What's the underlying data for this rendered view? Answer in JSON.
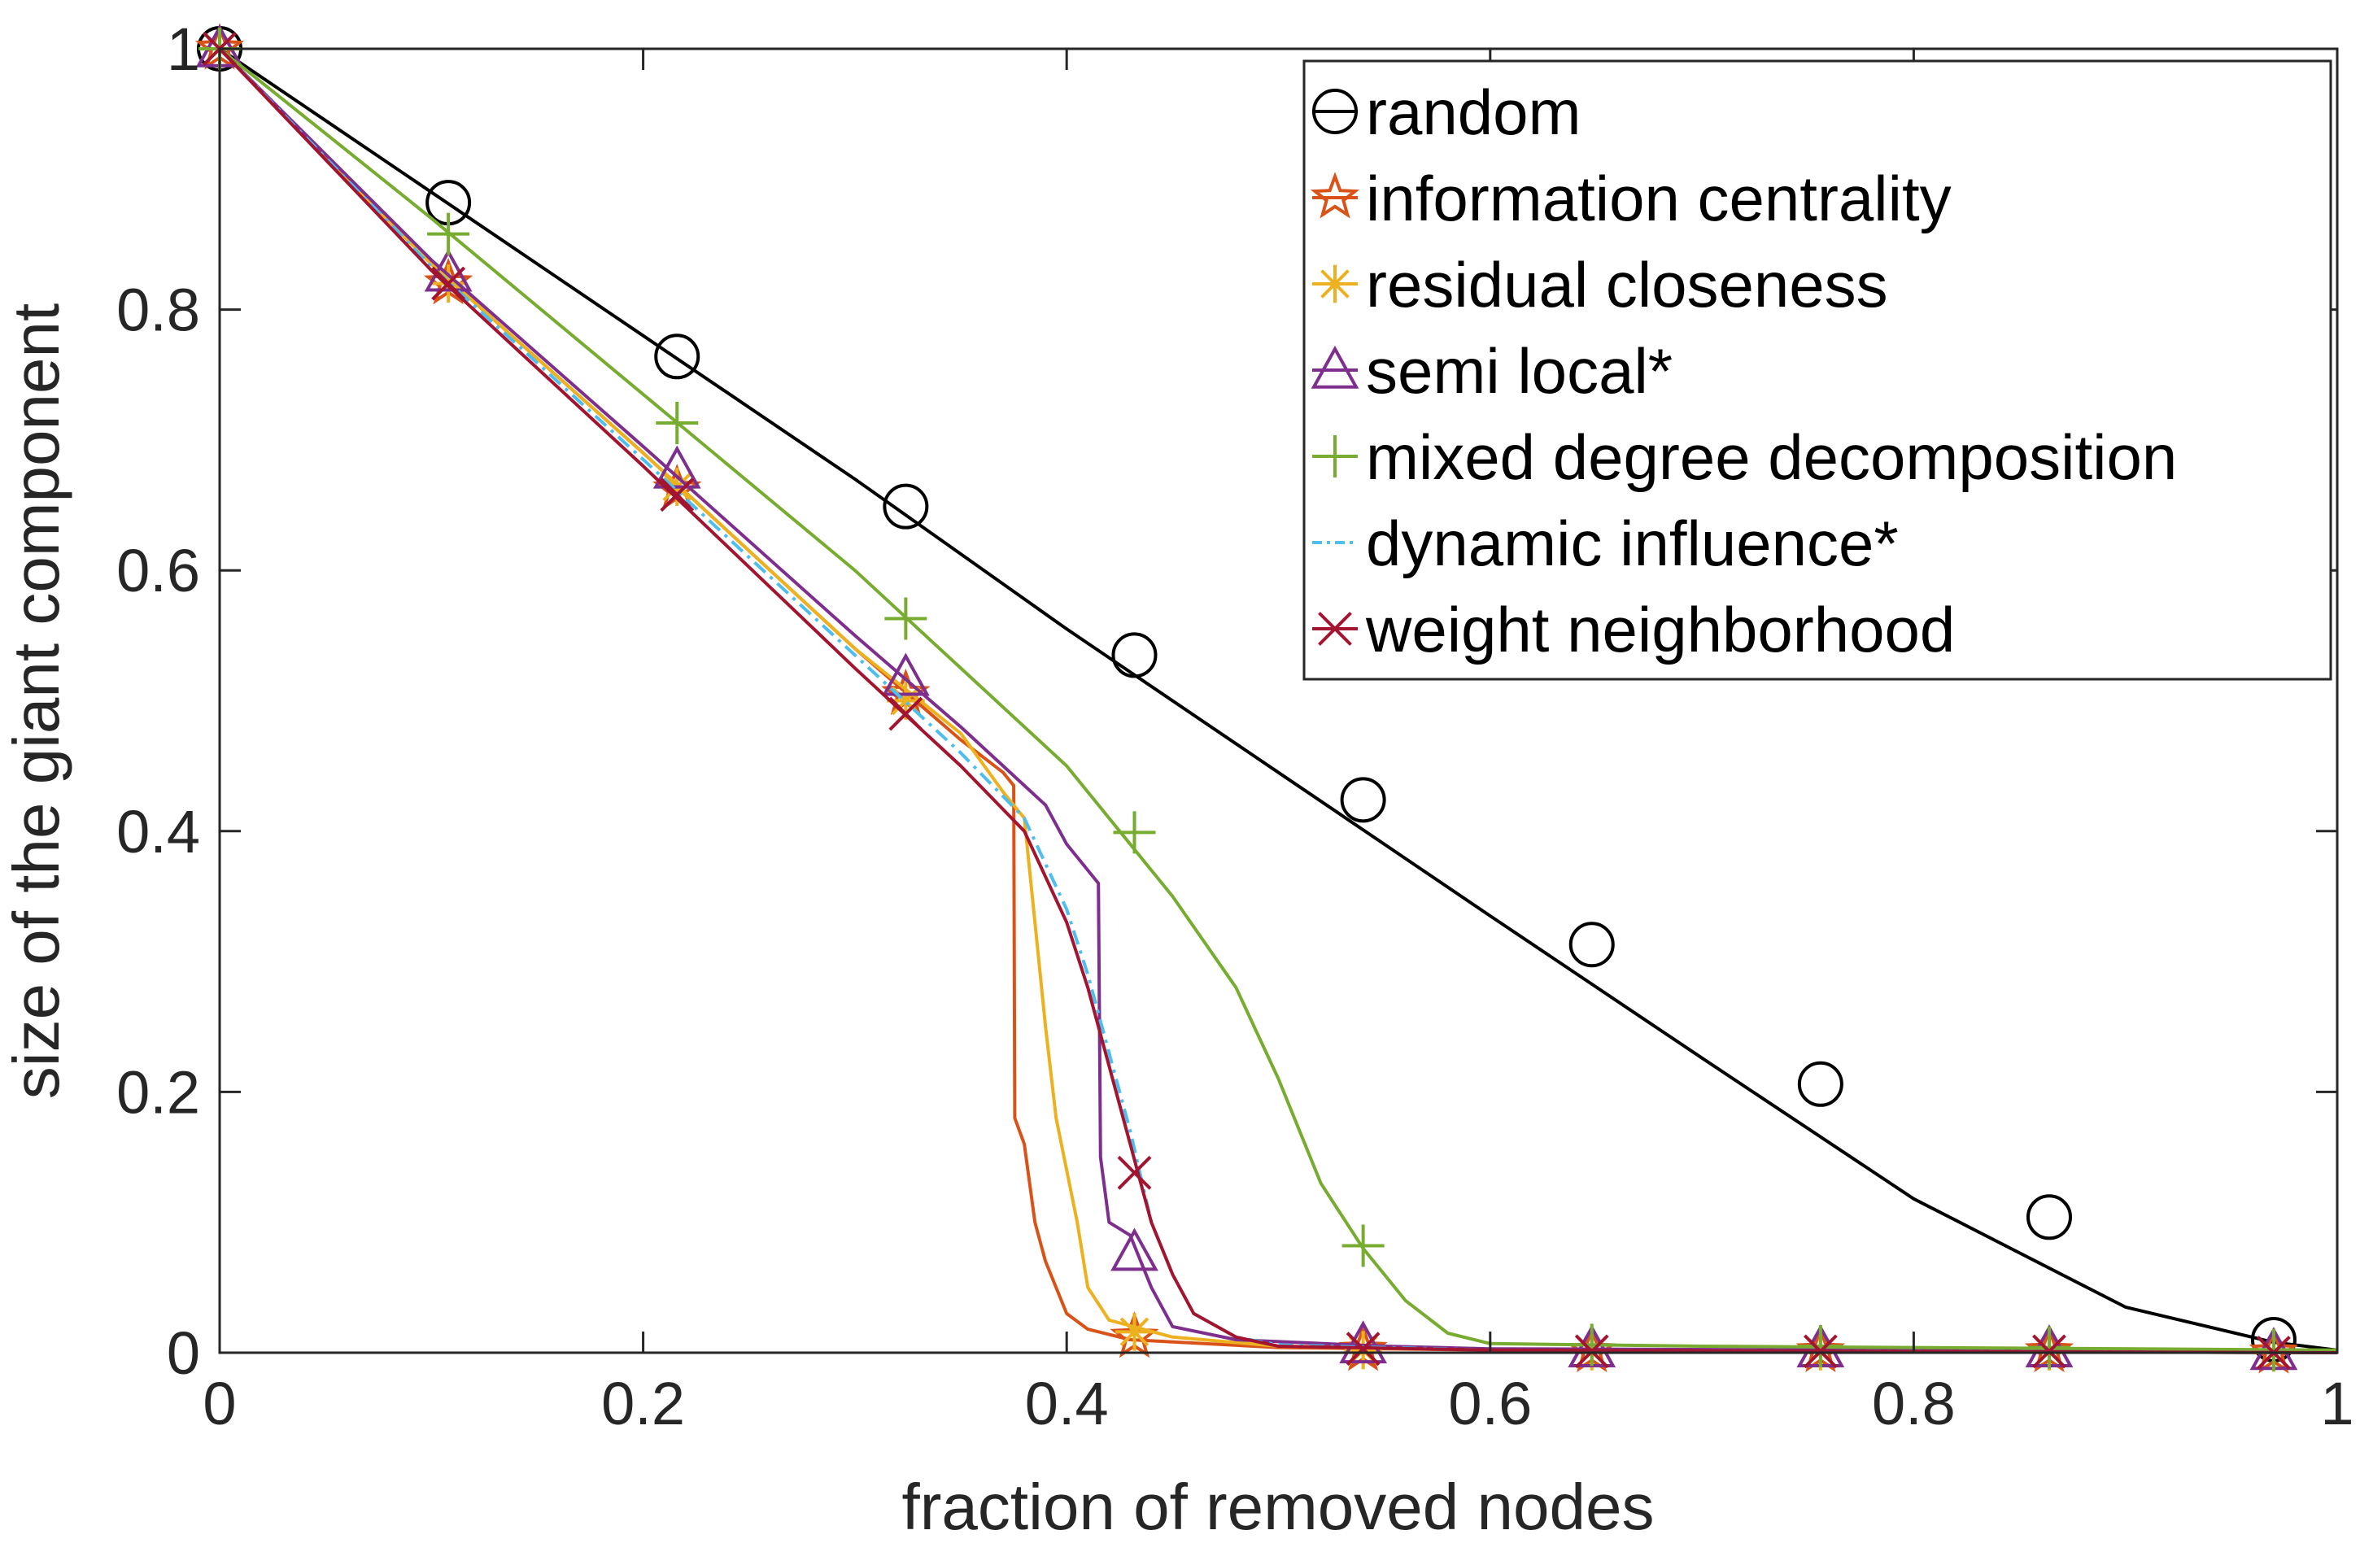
{
  "chart_data": {
    "type": "line",
    "title": "",
    "xlabel": "fraction of removed nodes",
    "ylabel": "size of the giant component",
    "xlim": [
      0,
      1
    ],
    "ylim": [
      0,
      1
    ],
    "x_ticks": [
      "0",
      "0.2",
      "0.4",
      "0.6",
      "0.8",
      "1"
    ],
    "y_ticks": [
      "0",
      "0.2",
      "0.4",
      "0.6",
      "0.8",
      "1"
    ],
    "grid": false,
    "legend_position": "top-right",
    "series": [
      {
        "name": "random",
        "color": "#000000",
        "marker": "circle",
        "dashed": false,
        "points": [
          [
            0,
            1
          ],
          [
            0.1,
            0.89
          ],
          [
            0.2,
            0.78
          ],
          [
            0.3,
            0.67
          ],
          [
            0.4,
            0.555
          ],
          [
            0.5,
            0.445
          ],
          [
            0.6,
            0.335
          ],
          [
            0.7,
            0.226
          ],
          [
            0.8,
            0.118
          ],
          [
            0.9,
            0.035
          ],
          [
            0.97,
            0.008
          ],
          [
            1,
            0.002
          ]
        ],
        "marker_points": [
          [
            0,
            1
          ],
          [
            0.108,
            0.882
          ],
          [
            0.216,
            0.764
          ],
          [
            0.324,
            0.649
          ],
          [
            0.432,
            0.535
          ],
          [
            0.54,
            0.424
          ],
          [
            0.648,
            0.313
          ],
          [
            0.756,
            0.206
          ],
          [
            0.864,
            0.104
          ],
          [
            0.97,
            0.01
          ]
        ]
      },
      {
        "name": "information centrality",
        "color": "#D95319",
        "marker": "pentagram",
        "dashed": false,
        "points": [
          [
            0,
            1
          ],
          [
            0.1,
            0.835
          ],
          [
            0.2,
            0.69
          ],
          [
            0.3,
            0.54
          ],
          [
            0.35,
            0.47
          ],
          [
            0.37,
            0.445
          ],
          [
            0.375,
            0.435
          ],
          [
            0.3755,
            0.18
          ],
          [
            0.38,
            0.16
          ],
          [
            0.385,
            0.1
          ],
          [
            0.39,
            0.07
          ],
          [
            0.4,
            0.03
          ],
          [
            0.41,
            0.018
          ],
          [
            0.43,
            0.01
          ],
          [
            0.5,
            0.004
          ],
          [
            0.6,
            0.002
          ],
          [
            1,
            0
          ]
        ],
        "marker_points": [
          [
            0,
            1
          ],
          [
            0.108,
            0.82
          ],
          [
            0.216,
            0.662
          ],
          [
            0.324,
            0.505
          ],
          [
            0.432,
            0.012
          ],
          [
            0.54,
            0.002
          ],
          [
            0.648,
            0.001
          ],
          [
            0.756,
            0.001
          ],
          [
            0.864,
            0.001
          ],
          [
            0.97,
            0
          ]
        ]
      },
      {
        "name": "residual closeness",
        "color": "#EDB120",
        "marker": "asterisk",
        "dashed": false,
        "points": [
          [
            0,
            1
          ],
          [
            0.1,
            0.835
          ],
          [
            0.2,
            0.69
          ],
          [
            0.3,
            0.54
          ],
          [
            0.35,
            0.475
          ],
          [
            0.37,
            0.43
          ],
          [
            0.38,
            0.41
          ],
          [
            0.385,
            0.33
          ],
          [
            0.39,
            0.25
          ],
          [
            0.395,
            0.18
          ],
          [
            0.4,
            0.14
          ],
          [
            0.405,
            0.1
          ],
          [
            0.41,
            0.05
          ],
          [
            0.42,
            0.025
          ],
          [
            0.45,
            0.012
          ],
          [
            0.5,
            0.005
          ],
          [
            0.6,
            0.002
          ],
          [
            1,
            0
          ]
        ],
        "marker_points": [
          [
            0,
            1
          ],
          [
            0.108,
            0.82
          ],
          [
            0.216,
            0.664
          ],
          [
            0.324,
            0.5
          ],
          [
            0.432,
            0.016
          ],
          [
            0.54,
            0.002
          ],
          [
            0.648,
            0.001
          ],
          [
            0.756,
            0.001
          ],
          [
            0.864,
            0.001
          ],
          [
            0.97,
            0
          ]
        ]
      },
      {
        "name": "semi local*",
        "color": "#7E2F8E",
        "marker": "triangle",
        "dashed": false,
        "points": [
          [
            0,
            1
          ],
          [
            0.1,
            0.838
          ],
          [
            0.2,
            0.695
          ],
          [
            0.3,
            0.55
          ],
          [
            0.35,
            0.48
          ],
          [
            0.39,
            0.42
          ],
          [
            0.4,
            0.39
          ],
          [
            0.41,
            0.37
          ],
          [
            0.415,
            0.36
          ],
          [
            0.416,
            0.15
          ],
          [
            0.42,
            0.1
          ],
          [
            0.43,
            0.09
          ],
          [
            0.44,
            0.05
          ],
          [
            0.45,
            0.02
          ],
          [
            0.48,
            0.01
          ],
          [
            0.55,
            0.005
          ],
          [
            0.6,
            0.003
          ],
          [
            1,
            0.001
          ]
        ],
        "marker_points": [
          [
            0,
            1
          ],
          [
            0.108,
            0.828
          ],
          [
            0.216,
            0.677
          ],
          [
            0.324,
            0.518
          ],
          [
            0.432,
            0.077
          ],
          [
            0.54,
            0.006
          ],
          [
            0.648,
            0.003
          ],
          [
            0.756,
            0.003
          ],
          [
            0.864,
            0.003
          ],
          [
            0.97,
            0.001
          ]
        ]
      },
      {
        "name": "mixed degree decomposition",
        "color": "#77AC30",
        "marker": "plus",
        "dashed": false,
        "points": [
          [
            0,
            1
          ],
          [
            0.1,
            0.87
          ],
          [
            0.2,
            0.735
          ],
          [
            0.3,
            0.6
          ],
          [
            0.35,
            0.525
          ],
          [
            0.4,
            0.45
          ],
          [
            0.45,
            0.35
          ],
          [
            0.48,
            0.28
          ],
          [
            0.5,
            0.21
          ],
          [
            0.52,
            0.13
          ],
          [
            0.54,
            0.08
          ],
          [
            0.56,
            0.04
          ],
          [
            0.58,
            0.015
          ],
          [
            0.6,
            0.007
          ],
          [
            0.7,
            0.005
          ],
          [
            1,
            0.002
          ]
        ],
        "marker_points": [
          [
            0,
            1
          ],
          [
            0.108,
            0.858
          ],
          [
            0.216,
            0.713
          ],
          [
            0.324,
            0.563
          ],
          [
            0.432,
            0.399
          ],
          [
            0.54,
            0.082
          ],
          [
            0.648,
            0.006
          ],
          [
            0.756,
            0.005
          ],
          [
            0.864,
            0.004
          ],
          [
            0.97,
            0.002
          ]
        ]
      },
      {
        "name": "dynamic influence*",
        "color": "#4DBEEE",
        "marker": "none",
        "dashed": true,
        "points": [
          [
            0,
            1
          ],
          [
            0.1,
            0.833
          ],
          [
            0.2,
            0.685
          ],
          [
            0.3,
            0.535
          ],
          [
            0.35,
            0.46
          ],
          [
            0.38,
            0.41
          ],
          [
            0.4,
            0.34
          ],
          [
            0.41,
            0.29
          ],
          [
            0.42,
            0.23
          ],
          [
            0.43,
            0.17
          ],
          [
            0.44,
            0.1
          ],
          [
            0.45,
            0.06
          ],
          [
            0.46,
            0.03
          ],
          [
            0.48,
            0.012
          ],
          [
            0.5,
            0.006
          ],
          [
            0.6,
            0.002
          ],
          [
            1,
            0
          ]
        ],
        "marker_points": []
      },
      {
        "name": "weight neighborhood",
        "color": "#A2142F",
        "marker": "x",
        "dashed": false,
        "points": [
          [
            0,
            1
          ],
          [
            0.1,
            0.83
          ],
          [
            0.2,
            0.68
          ],
          [
            0.3,
            0.525
          ],
          [
            0.35,
            0.45
          ],
          [
            0.38,
            0.4
          ],
          [
            0.4,
            0.33
          ],
          [
            0.41,
            0.28
          ],
          [
            0.42,
            0.22
          ],
          [
            0.43,
            0.16
          ],
          [
            0.44,
            0.1
          ],
          [
            0.45,
            0.06
          ],
          [
            0.46,
            0.03
          ],
          [
            0.48,
            0.012
          ],
          [
            0.5,
            0.005
          ],
          [
            0.6,
            0.002
          ],
          [
            1,
            0
          ]
        ],
        "marker_points": [
          [
            0,
            1
          ],
          [
            0.108,
            0.82
          ],
          [
            0.216,
            0.658
          ],
          [
            0.324,
            0.49
          ],
          [
            0.432,
            0.138
          ],
          [
            0.54,
            0.003
          ],
          [
            0.648,
            0.001
          ],
          [
            0.756,
            0.001
          ],
          [
            0.864,
            0.001
          ],
          [
            0.97,
            0
          ]
        ]
      }
    ]
  }
}
